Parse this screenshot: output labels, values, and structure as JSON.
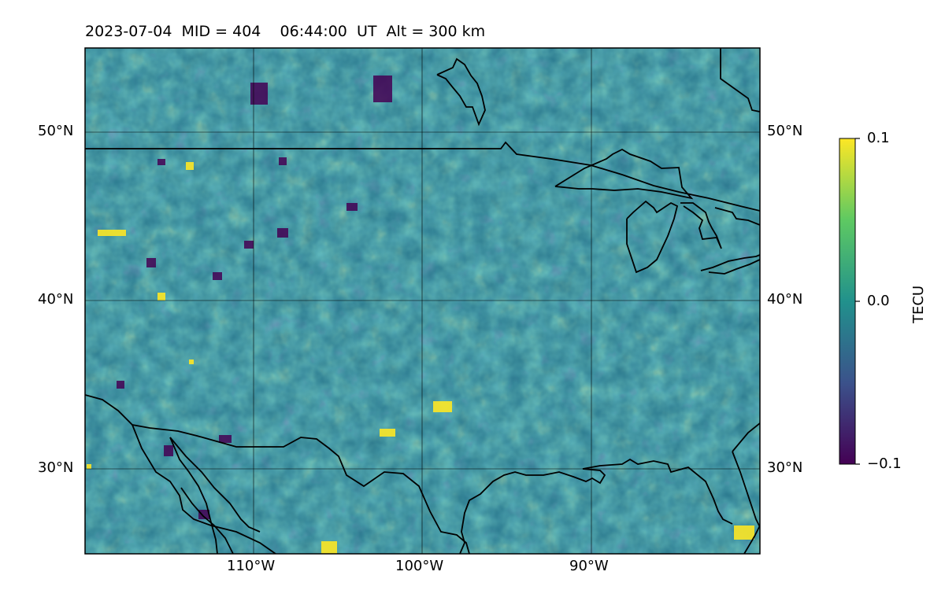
{
  "figure": {
    "title": "2023-07-04  MID = 404    06:44:00  UT  Alt = 300 km",
    "lat_labels": [
      "50°N",
      "40°N",
      "30°N"
    ],
    "lon_labels": [
      "110°W",
      "100°W",
      "90°W"
    ]
  },
  "map": {
    "extent": {
      "lon_min": -120,
      "lon_max": -80,
      "lat_min": 25,
      "lat_max": 55
    },
    "gridlines": {
      "lons": [
        -110,
        -100,
        -90
      ],
      "lats": [
        30,
        40,
        50
      ]
    },
    "field": "TEC perturbation (dTEC) map over North America",
    "colormap": "viridis"
  },
  "colorbar": {
    "label": "TECU",
    "ticks": [
      "0.1",
      "0.0",
      "−0.1"
    ],
    "vmin": -0.1,
    "vmax": 0.1,
    "colors": [
      "#440154",
      "#3b528b",
      "#21918c",
      "#5ec962",
      "#fde725"
    ]
  }
}
